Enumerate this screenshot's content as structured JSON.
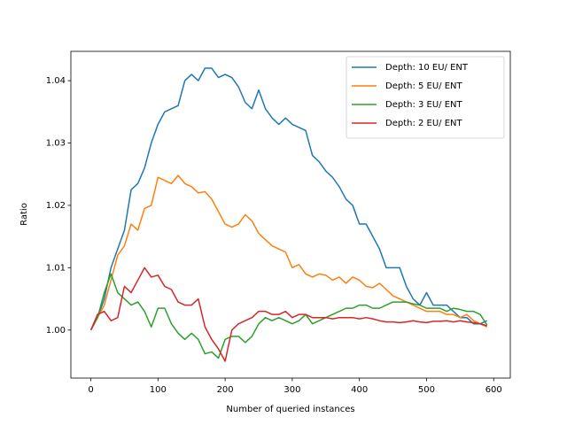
{
  "chart_data": {
    "type": "line",
    "xlabel": "Number of queried instances",
    "ylabel": "Ratio",
    "x": [
      0,
      10,
      20,
      30,
      40,
      50,
      60,
      70,
      80,
      90,
      100,
      110,
      120,
      130,
      140,
      150,
      160,
      170,
      180,
      190,
      200,
      210,
      220,
      230,
      240,
      250,
      260,
      270,
      280,
      290,
      300,
      310,
      320,
      330,
      340,
      350,
      360,
      370,
      380,
      390,
      400,
      410,
      420,
      430,
      440,
      450,
      460,
      470,
      480,
      490,
      500,
      510,
      520,
      530,
      540,
      550,
      560,
      570,
      580,
      590
    ],
    "series": [
      {
        "name": "Depth: 10 EU/ ENT",
        "color": "#1f77b4",
        "values": [
          1.0,
          1.002,
          1.005,
          1.01,
          1.013,
          1.016,
          1.0225,
          1.0235,
          1.026,
          1.03,
          1.033,
          1.035,
          1.0355,
          1.036,
          1.04,
          1.041,
          1.04,
          1.042,
          1.042,
          1.0405,
          1.041,
          1.0405,
          1.039,
          1.0365,
          1.0355,
          1.0385,
          1.0355,
          1.034,
          1.033,
          1.034,
          1.033,
          1.0325,
          1.032,
          1.028,
          1.027,
          1.0255,
          1.0245,
          1.023,
          1.021,
          1.02,
          1.017,
          1.017,
          1.015,
          1.013,
          1.01,
          1.01,
          1.01,
          1.007,
          1.005,
          1.004,
          1.006,
          1.004,
          1.004,
          1.004,
          1.003,
          1.002,
          1.002,
          1.001,
          1.001,
          1.0015
        ]
      },
      {
        "name": "Depth: 5 EU/ ENT",
        "color": "#ff7f0e",
        "values": [
          1.0,
          1.002,
          1.004,
          1.008,
          1.012,
          1.0135,
          1.017,
          1.016,
          1.0195,
          1.02,
          1.0245,
          1.024,
          1.0235,
          1.0248,
          1.0235,
          1.023,
          1.022,
          1.0222,
          1.021,
          1.019,
          1.017,
          1.0165,
          1.017,
          1.0185,
          1.0175,
          1.0155,
          1.0145,
          1.0135,
          1.013,
          1.0125,
          1.01,
          1.0105,
          1.009,
          1.0085,
          1.009,
          1.0088,
          1.008,
          1.0085,
          1.0075,
          1.0085,
          1.008,
          1.007,
          1.0068,
          1.0075,
          1.0065,
          1.0055,
          1.005,
          1.0045,
          1.004,
          1.0035,
          1.003,
          1.003,
          1.003,
          1.0025,
          1.0025,
          1.002,
          1.0025,
          1.0015,
          1.001,
          1.0005
        ]
      },
      {
        "name": "Depth: 3 EU/ ENT",
        "color": "#2ca02c",
        "values": [
          1.0,
          1.002,
          1.006,
          1.009,
          1.006,
          1.005,
          1.004,
          1.0045,
          1.003,
          1.0005,
          1.0035,
          1.0035,
          1.001,
          0.9995,
          0.9985,
          0.9995,
          0.9985,
          0.9962,
          0.9965,
          0.9955,
          0.9985,
          0.999,
          0.999,
          0.998,
          0.999,
          1.001,
          1.002,
          1.0015,
          1.002,
          1.0015,
          1.001,
          1.0015,
          1.0025,
          1.001,
          1.0015,
          1.002,
          1.0025,
          1.003,
          1.0035,
          1.0035,
          1.004,
          1.004,
          1.0035,
          1.0035,
          1.004,
          1.0045,
          1.0045,
          1.0045,
          1.0042,
          1.004,
          1.0035,
          1.0035,
          1.0035,
          1.003,
          1.0035,
          1.0033,
          1.003,
          1.003,
          1.0025,
          1.0008
        ]
      },
      {
        "name": "Depth: 2 EU/ ENT",
        "color": "#d62728",
        "values": [
          1.0,
          1.0025,
          1.003,
          1.0015,
          1.002,
          1.007,
          1.006,
          1.008,
          1.01,
          1.0085,
          1.0088,
          1.007,
          1.0065,
          1.0045,
          1.004,
          1.004,
          1.005,
          1.0005,
          0.9985,
          0.997,
          0.995,
          1.0,
          1.001,
          1.0015,
          1.002,
          1.003,
          1.003,
          1.0025,
          1.0025,
          1.003,
          1.002,
          1.0025,
          1.0025,
          1.002,
          1.002,
          1.002,
          1.0018,
          1.002,
          1.002,
          1.002,
          1.0018,
          1.002,
          1.0018,
          1.0015,
          1.0013,
          1.0013,
          1.0012,
          1.0013,
          1.0015,
          1.0013,
          1.0012,
          1.0014,
          1.0014,
          1.0015,
          1.0013,
          1.0015,
          1.0013,
          1.0012,
          1.001,
          1.0007
        ]
      }
    ],
    "xlim": [
      -29.75,
      624.75
    ],
    "xticks": [
      0,
      100,
      200,
      300,
      400,
      500,
      600
    ],
    "ylim": [
      0.9923,
      1.0447
    ],
    "yticks": [
      {
        "value": 1.0,
        "label": "1.00"
      },
      {
        "value": 1.01,
        "label": "1.01"
      },
      {
        "value": 1.02,
        "label": "1.02"
      },
      {
        "value": 1.03,
        "label": "1.03"
      },
      {
        "value": 1.04,
        "label": "1.04"
      }
    ],
    "legend": "upper right",
    "grid": false
  }
}
